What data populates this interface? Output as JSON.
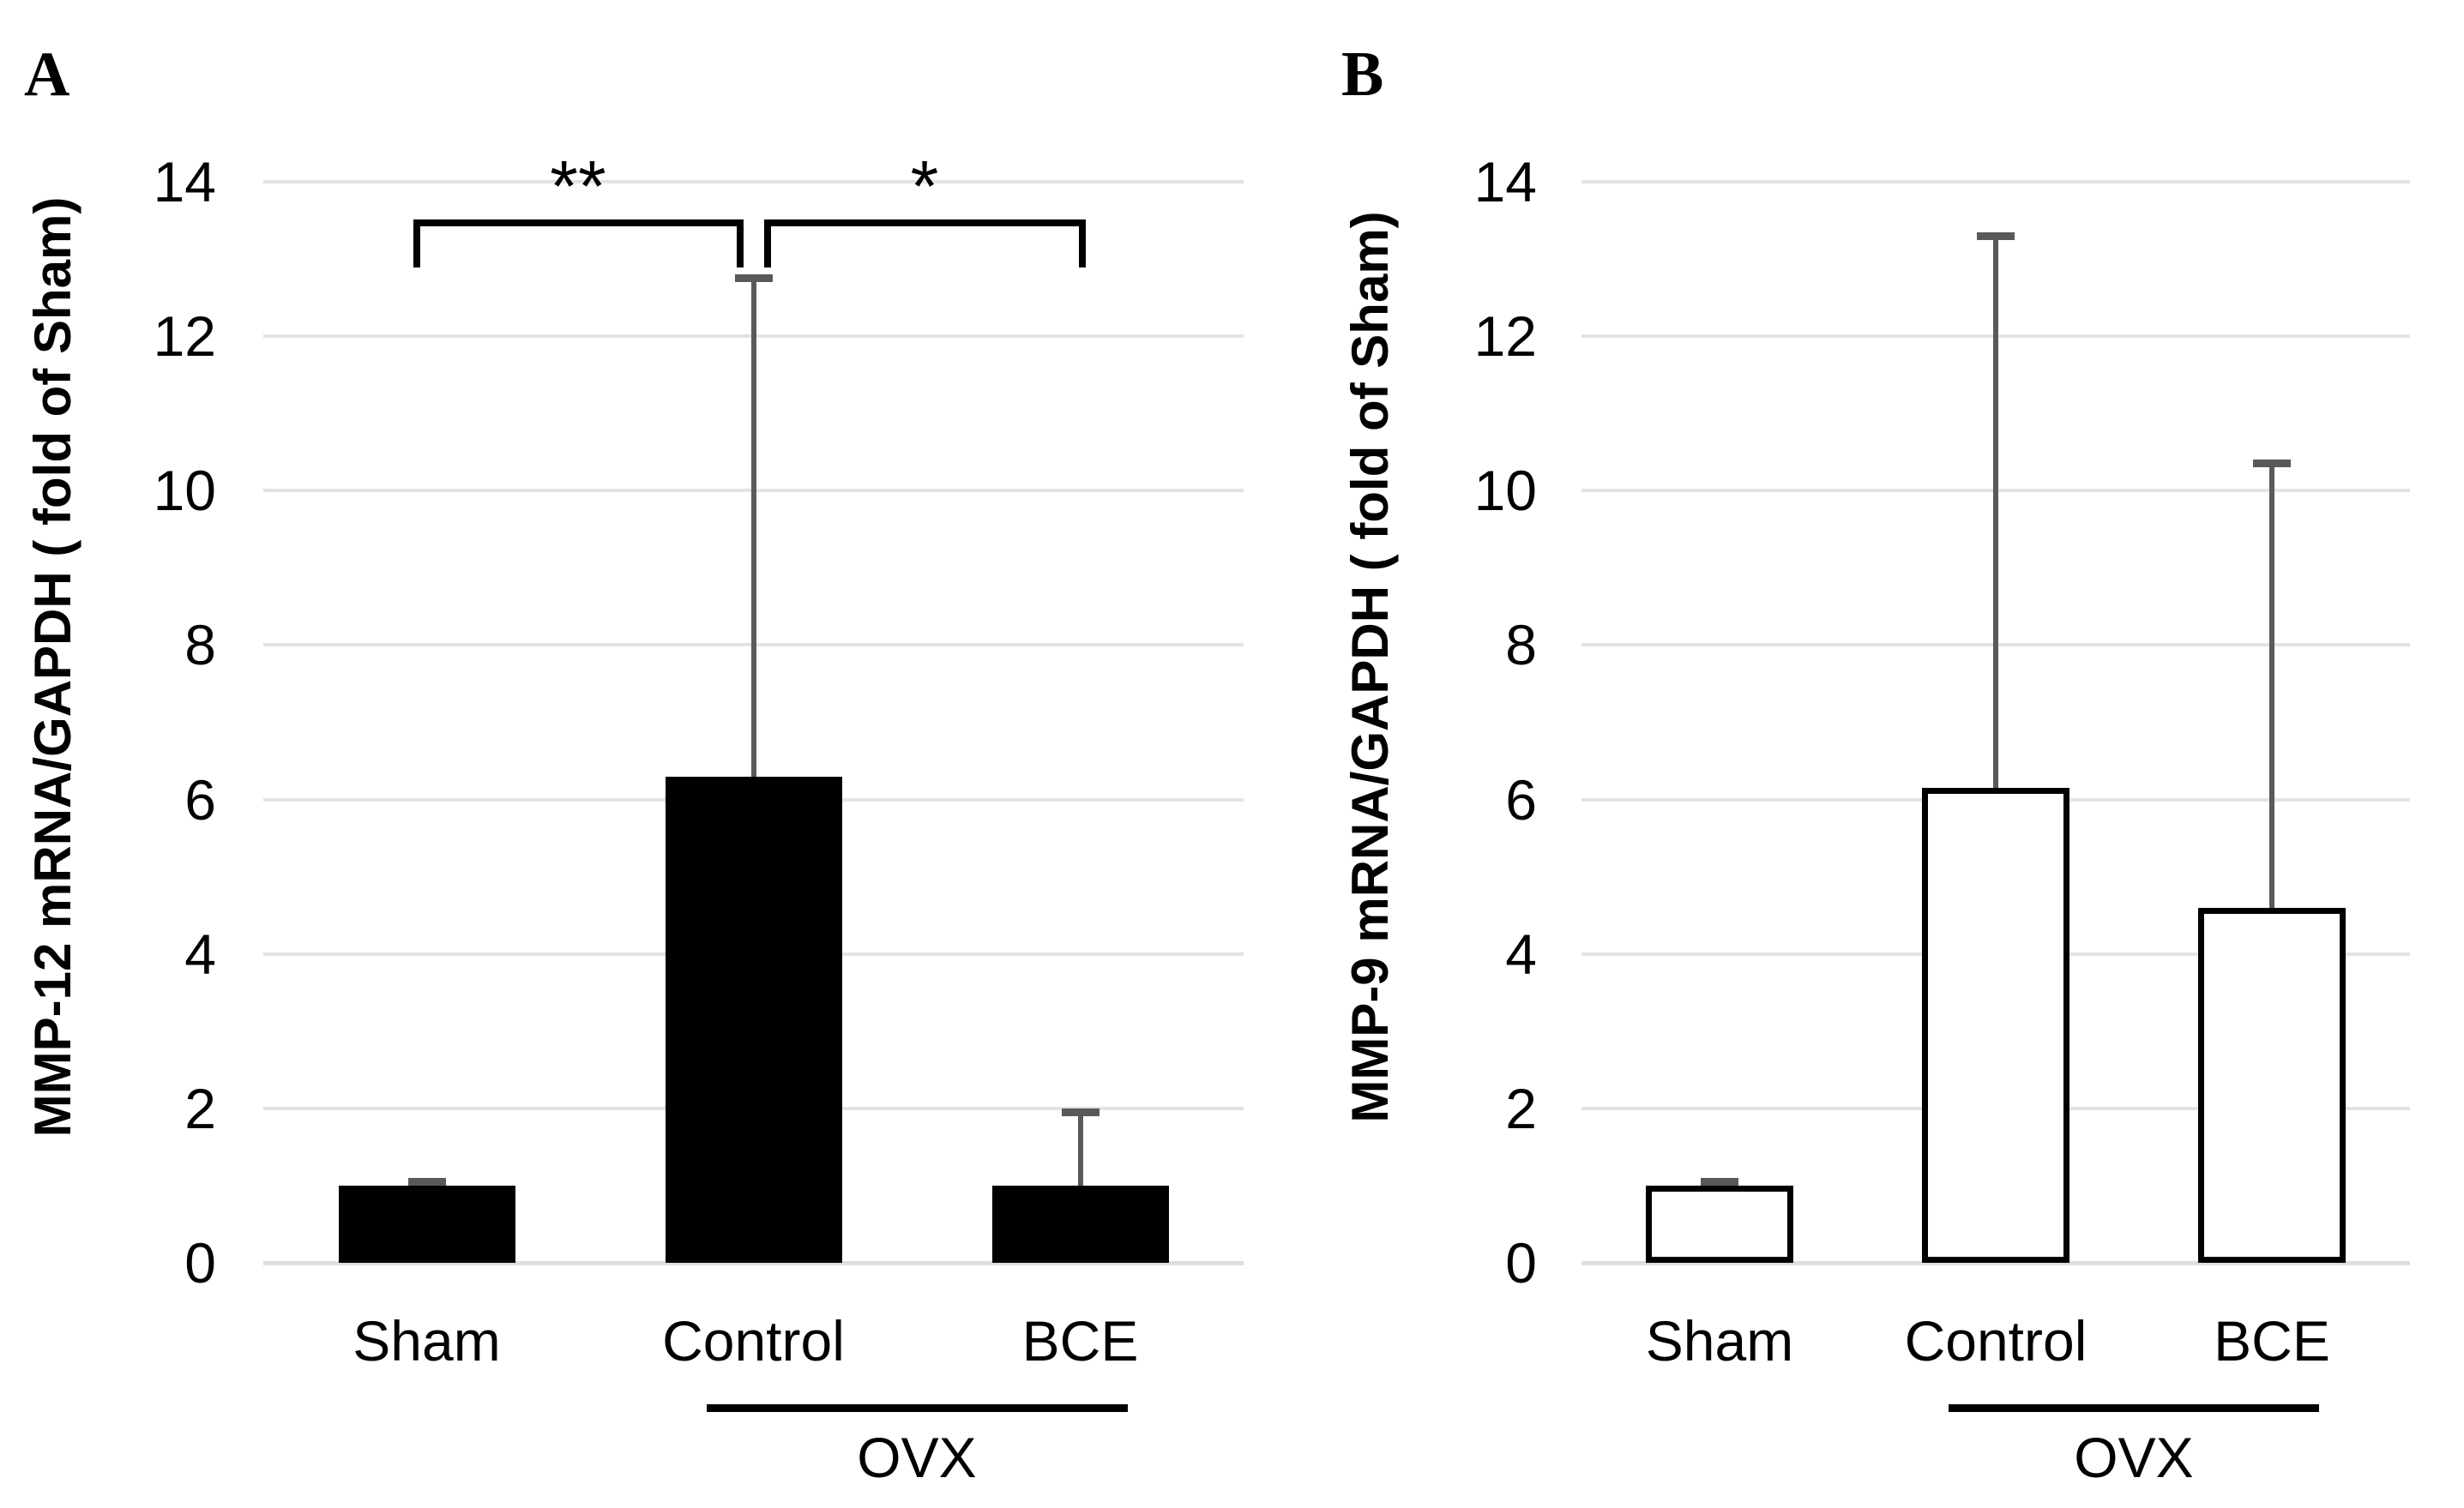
{
  "figure_caption_letters": [
    "A",
    "B"
  ],
  "colors": {
    "background": "#ffffff",
    "text": "#000000",
    "gridline": "#e3e3e3",
    "zero_line": "#dedede",
    "error_bar": "#595959",
    "panel_a_bar_fill": "#000000",
    "panel_b_bar_fill": "#ffffff",
    "bar_border": "#000000"
  },
  "chart_data": [
    {
      "type": "bar",
      "panel_letter": "A",
      "title": "",
      "xlabel": "",
      "ylabel": "MMP-12 mRNA/GAPDH ( fold of Sham)",
      "categories": [
        "Sham",
        "Control",
        "BCE"
      ],
      "values": [
        1.0,
        6.3,
        1.0
      ],
      "error_up_to": [
        1.05,
        12.75,
        1.95
      ],
      "ylim": [
        0,
        14
      ],
      "yticks": [
        0,
        2,
        4,
        6,
        8,
        10,
        12,
        14
      ],
      "grid": true,
      "legend_position": "none",
      "bar_fill": "#000000",
      "bar_border": "#000000",
      "group_annotation": {
        "label": "OVX",
        "categories": [
          "Control",
          "BCE"
        ]
      },
      "significance_brackets": [
        {
          "between": [
            "Sham",
            "Control"
          ],
          "label": "**"
        },
        {
          "between": [
            "Control",
            "BCE"
          ],
          "label": "*"
        }
      ]
    },
    {
      "type": "bar",
      "panel_letter": "B",
      "title": "",
      "xlabel": "",
      "ylabel": "MMP-9 mRNA/GAPDH ( fold of Sham)",
      "categories": [
        "Sham",
        "Control",
        "BCE"
      ],
      "values": [
        1.0,
        6.15,
        4.6
      ],
      "error_up_to": [
        1.05,
        13.3,
        10.35
      ],
      "ylim": [
        0,
        14
      ],
      "yticks": [
        0,
        2,
        4,
        6,
        8,
        10,
        12,
        14
      ],
      "grid": true,
      "legend_position": "none",
      "bar_fill": "#ffffff",
      "bar_border": "#000000",
      "group_annotation": {
        "label": "OVX",
        "categories": [
          "Control",
          "BCE"
        ]
      },
      "significance_brackets": []
    }
  ]
}
